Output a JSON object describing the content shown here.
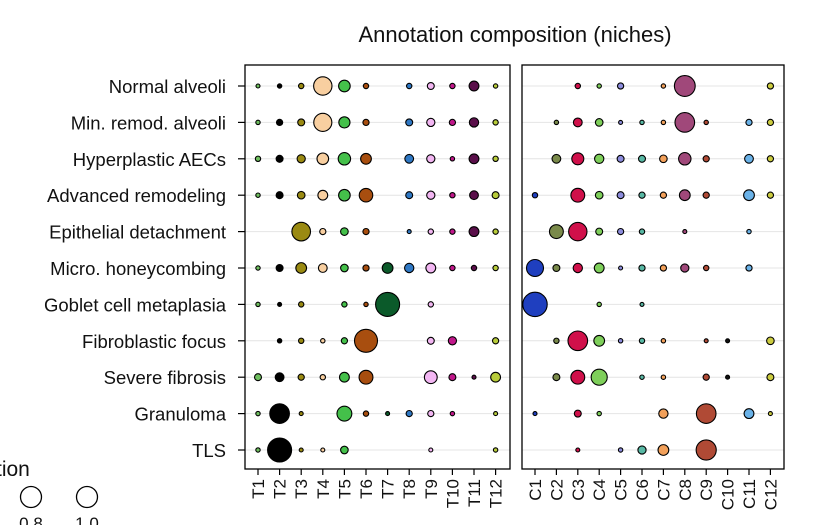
{
  "chart_data": {
    "type": "scatter",
    "title": "Annotation composition (niches)",
    "rows": [
      "Normal alveoli",
      "Min. remod. alveoli",
      "Hyperplastic AECs",
      "Advanced remodeling",
      "Epithelial detachment",
      "Micro. honeycombing",
      "Goblet cell metaplasia",
      "Fibroblastic focus",
      "Severe fibrosis",
      "Granuloma",
      "TLS"
    ],
    "panels": [
      {
        "columns": [
          "T1",
          "T2",
          "T3",
          "T4",
          "T5",
          "T6",
          "T7",
          "T8",
          "T9",
          "T10",
          "T11",
          "T12"
        ],
        "colors": [
          "#6fbf5f",
          "#000000",
          "#9a8a12",
          "#f8cfa0",
          "#44c04a",
          "#a84e0f",
          "#0b5a2a",
          "#2f78c4",
          "#f2b6f2",
          "#c0178a",
          "#5a0f4a",
          "#b8cc3a"
        ],
        "points": [
          [
            0,
            0,
            0.0
          ],
          [
            0,
            1,
            0.02
          ],
          [
            0,
            2,
            0.03
          ],
          [
            0,
            3,
            0.35
          ],
          [
            0,
            4,
            0.14
          ],
          [
            0,
            5,
            0.03
          ],
          [
            0,
            7,
            0.03
          ],
          [
            0,
            8,
            0.05
          ],
          [
            0,
            9,
            0.03
          ],
          [
            0,
            10,
            0.1
          ],
          [
            0,
            11,
            0.02
          ],
          [
            1,
            0,
            0.02
          ],
          [
            1,
            1,
            0.04
          ],
          [
            1,
            2,
            0.05
          ],
          [
            1,
            3,
            0.34
          ],
          [
            1,
            4,
            0.13
          ],
          [
            1,
            5,
            0.04
          ],
          [
            1,
            7,
            0.05
          ],
          [
            1,
            8,
            0.07
          ],
          [
            1,
            9,
            0.04
          ],
          [
            1,
            10,
            0.09
          ],
          [
            1,
            11,
            0.03
          ],
          [
            2,
            0,
            0.03
          ],
          [
            2,
            1,
            0.05
          ],
          [
            2,
            2,
            0.07
          ],
          [
            2,
            3,
            0.14
          ],
          [
            2,
            4,
            0.16
          ],
          [
            2,
            5,
            0.12
          ],
          [
            2,
            7,
            0.08
          ],
          [
            2,
            8,
            0.07
          ],
          [
            2,
            9,
            0.02
          ],
          [
            2,
            10,
            0.1
          ],
          [
            2,
            11,
            0.03
          ],
          [
            3,
            0,
            0.02
          ],
          [
            3,
            1,
            0.05
          ],
          [
            3,
            2,
            0.06
          ],
          [
            3,
            3,
            0.1
          ],
          [
            3,
            4,
            0.14
          ],
          [
            3,
            5,
            0.19
          ],
          [
            3,
            7,
            0.05
          ],
          [
            3,
            8,
            0.07
          ],
          [
            3,
            9,
            0.03
          ],
          [
            3,
            10,
            0.08
          ],
          [
            3,
            11,
            0.05
          ],
          [
            4,
            2,
            0.36
          ],
          [
            4,
            3,
            0.04
          ],
          [
            4,
            4,
            0.06
          ],
          [
            4,
            5,
            0.04
          ],
          [
            4,
            7,
            0.01
          ],
          [
            4,
            8,
            0.03
          ],
          [
            4,
            9,
            0.03
          ],
          [
            4,
            10,
            0.1
          ],
          [
            4,
            11,
            0.03
          ],
          [
            5,
            0,
            0.02
          ],
          [
            5,
            1,
            0.05
          ],
          [
            5,
            2,
            0.12
          ],
          [
            5,
            3,
            0.08
          ],
          [
            5,
            4,
            0.06
          ],
          [
            5,
            5,
            0.04
          ],
          [
            5,
            6,
            0.12
          ],
          [
            5,
            7,
            0.09
          ],
          [
            5,
            8,
            0.1
          ],
          [
            5,
            9,
            0.03
          ],
          [
            5,
            10,
            0.03
          ],
          [
            5,
            11,
            0.03
          ],
          [
            6,
            0,
            0.02
          ],
          [
            6,
            1,
            0.01
          ],
          [
            6,
            2,
            0.03
          ],
          [
            6,
            4,
            0.03
          ],
          [
            6,
            5,
            0.02
          ],
          [
            6,
            6,
            0.6
          ],
          [
            6,
            8,
            0.03
          ],
          [
            7,
            1,
            0.02
          ],
          [
            7,
            2,
            0.03
          ],
          [
            7,
            3,
            0.02
          ],
          [
            7,
            4,
            0.04
          ],
          [
            7,
            5,
            0.55
          ],
          [
            7,
            8,
            0.05
          ],
          [
            7,
            9,
            0.07
          ],
          [
            7,
            11,
            0.04
          ],
          [
            8,
            0,
            0.05
          ],
          [
            8,
            1,
            0.08
          ],
          [
            8,
            2,
            0.04
          ],
          [
            8,
            3,
            0.03
          ],
          [
            8,
            4,
            0.1
          ],
          [
            8,
            5,
            0.2
          ],
          [
            8,
            8,
            0.17
          ],
          [
            8,
            9,
            0.05
          ],
          [
            8,
            10,
            0.01
          ],
          [
            8,
            11,
            0.1
          ],
          [
            9,
            0,
            0.02
          ],
          [
            9,
            1,
            0.4
          ],
          [
            9,
            2,
            0.01
          ],
          [
            9,
            4,
            0.23
          ],
          [
            9,
            5,
            0.03
          ],
          [
            9,
            6,
            0.01
          ],
          [
            9,
            7,
            0.04
          ],
          [
            9,
            8,
            0.04
          ],
          [
            9,
            9,
            0.02
          ],
          [
            9,
            11,
            0.01
          ],
          [
            10,
            0,
            0.02
          ],
          [
            10,
            1,
            0.6
          ],
          [
            10,
            2,
            0.01
          ],
          [
            10,
            3,
            0.01
          ],
          [
            10,
            4,
            0.06
          ],
          [
            10,
            8,
            0.01
          ],
          [
            10,
            11,
            0.02
          ]
        ]
      },
      {
        "columns": [
          "C1",
          "C2",
          "C3",
          "C4",
          "C5",
          "C6",
          "C7",
          "C8",
          "C9",
          "C10",
          "C11",
          "C12"
        ],
        "colors": [
          "#1f3fbf",
          "#7a8a4a",
          "#d0104a",
          "#7ecf5a",
          "#8c8cdc",
          "#58b8a4",
          "#f2a05a",
          "#a0487a",
          "#b04a35",
          "#111111",
          "#6ab2e8",
          "#cccc40"
        ],
        "points": [
          [
            0,
            2,
            0.03
          ],
          [
            0,
            3,
            0.02
          ],
          [
            0,
            4,
            0.04
          ],
          [
            0,
            6,
            0.02
          ],
          [
            0,
            7,
            0.45
          ],
          [
            0,
            11,
            0.04
          ],
          [
            1,
            1,
            0.02
          ],
          [
            1,
            2,
            0.08
          ],
          [
            1,
            3,
            0.06
          ],
          [
            1,
            4,
            0.01
          ],
          [
            1,
            5,
            0.02
          ],
          [
            1,
            6,
            0.02
          ],
          [
            1,
            7,
            0.4
          ],
          [
            1,
            8,
            0.02
          ],
          [
            1,
            10,
            0.04
          ],
          [
            1,
            11,
            0.04
          ],
          [
            2,
            1,
            0.08
          ],
          [
            2,
            2,
            0.15
          ],
          [
            2,
            3,
            0.09
          ],
          [
            2,
            4,
            0.05
          ],
          [
            2,
            5,
            0.05
          ],
          [
            2,
            6,
            0.06
          ],
          [
            2,
            7,
            0.16
          ],
          [
            2,
            8,
            0.04
          ],
          [
            2,
            10,
            0.08
          ],
          [
            2,
            11,
            0.04
          ],
          [
            3,
            0,
            0.03
          ],
          [
            3,
            2,
            0.2
          ],
          [
            3,
            3,
            0.06
          ],
          [
            3,
            4,
            0.05
          ],
          [
            3,
            5,
            0.04
          ],
          [
            3,
            6,
            0.04
          ],
          [
            3,
            7,
            0.12
          ],
          [
            3,
            8,
            0.04
          ],
          [
            3,
            10,
            0.12
          ],
          [
            3,
            11,
            0.04
          ],
          [
            4,
            1,
            0.2
          ],
          [
            4,
            2,
            0.35
          ],
          [
            4,
            3,
            0.05
          ],
          [
            4,
            4,
            0.04
          ],
          [
            4,
            5,
            0.03
          ],
          [
            4,
            7,
            0.01
          ],
          [
            4,
            10,
            0.02
          ],
          [
            5,
            0,
            0.3
          ],
          [
            5,
            1,
            0.05
          ],
          [
            5,
            2,
            0.09
          ],
          [
            5,
            3,
            0.1
          ],
          [
            5,
            4,
            0.01
          ],
          [
            5,
            5,
            0.04
          ],
          [
            5,
            6,
            0.04
          ],
          [
            5,
            7,
            0.07
          ],
          [
            5,
            8,
            0.03
          ],
          [
            5,
            10,
            0.04
          ],
          [
            6,
            0,
            0.62
          ],
          [
            6,
            3,
            0.02
          ],
          [
            6,
            5,
            0.01
          ],
          [
            7,
            1,
            0.03
          ],
          [
            7,
            2,
            0.4
          ],
          [
            7,
            3,
            0.12
          ],
          [
            7,
            4,
            0.02
          ],
          [
            7,
            5,
            0.03
          ],
          [
            7,
            6,
            0.02
          ],
          [
            7,
            8,
            0.01
          ],
          [
            7,
            9,
            0.01
          ],
          [
            7,
            11,
            0.06
          ],
          [
            8,
            1,
            0.05
          ],
          [
            8,
            2,
            0.2
          ],
          [
            8,
            3,
            0.27
          ],
          [
            8,
            5,
            0.02
          ],
          [
            8,
            6,
            0.02
          ],
          [
            8,
            8,
            0.04
          ],
          [
            8,
            9,
            0.01
          ],
          [
            8,
            11,
            0.05
          ],
          [
            9,
            0,
            0.01
          ],
          [
            9,
            2,
            0.05
          ],
          [
            9,
            3,
            0.02
          ],
          [
            9,
            6,
            0.09
          ],
          [
            9,
            8,
            0.4
          ],
          [
            9,
            10,
            0.1
          ],
          [
            9,
            11,
            0.01
          ],
          [
            10,
            2,
            0.01
          ],
          [
            10,
            4,
            0.02
          ],
          [
            10,
            5,
            0.07
          ],
          [
            10,
            6,
            0.12
          ],
          [
            10,
            8,
            0.42
          ]
        ]
      }
    ],
    "legend": {
      "title_fragment": "tion",
      "values": [
        0.8,
        1.0
      ],
      "labels": [
        "0.8",
        "1.0"
      ]
    },
    "grid": true
  }
}
